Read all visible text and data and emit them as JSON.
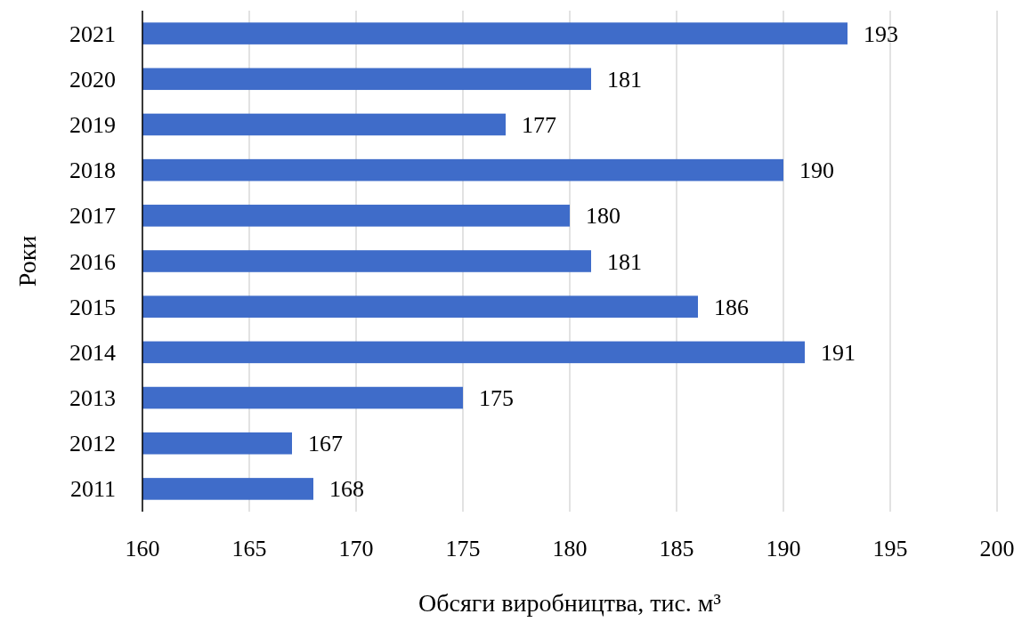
{
  "chart_data": {
    "type": "bar",
    "orientation": "horizontal",
    "xlabel": "Обсяги виробництва, тис. м³",
    "ylabel": "Роки",
    "categories": [
      "2021",
      "2020",
      "2019",
      "2018",
      "2017",
      "2016",
      "2015",
      "2014",
      "2013",
      "2012",
      "2011"
    ],
    "values": [
      193,
      181,
      177,
      190,
      180,
      181,
      186,
      191,
      175,
      167,
      168
    ],
    "color": "#3f6cc9",
    "xlim": [
      160,
      200
    ],
    "xticks": [
      160,
      165,
      170,
      175,
      180,
      185,
      190,
      195,
      200
    ],
    "grid": "x",
    "data_labels": true
  }
}
